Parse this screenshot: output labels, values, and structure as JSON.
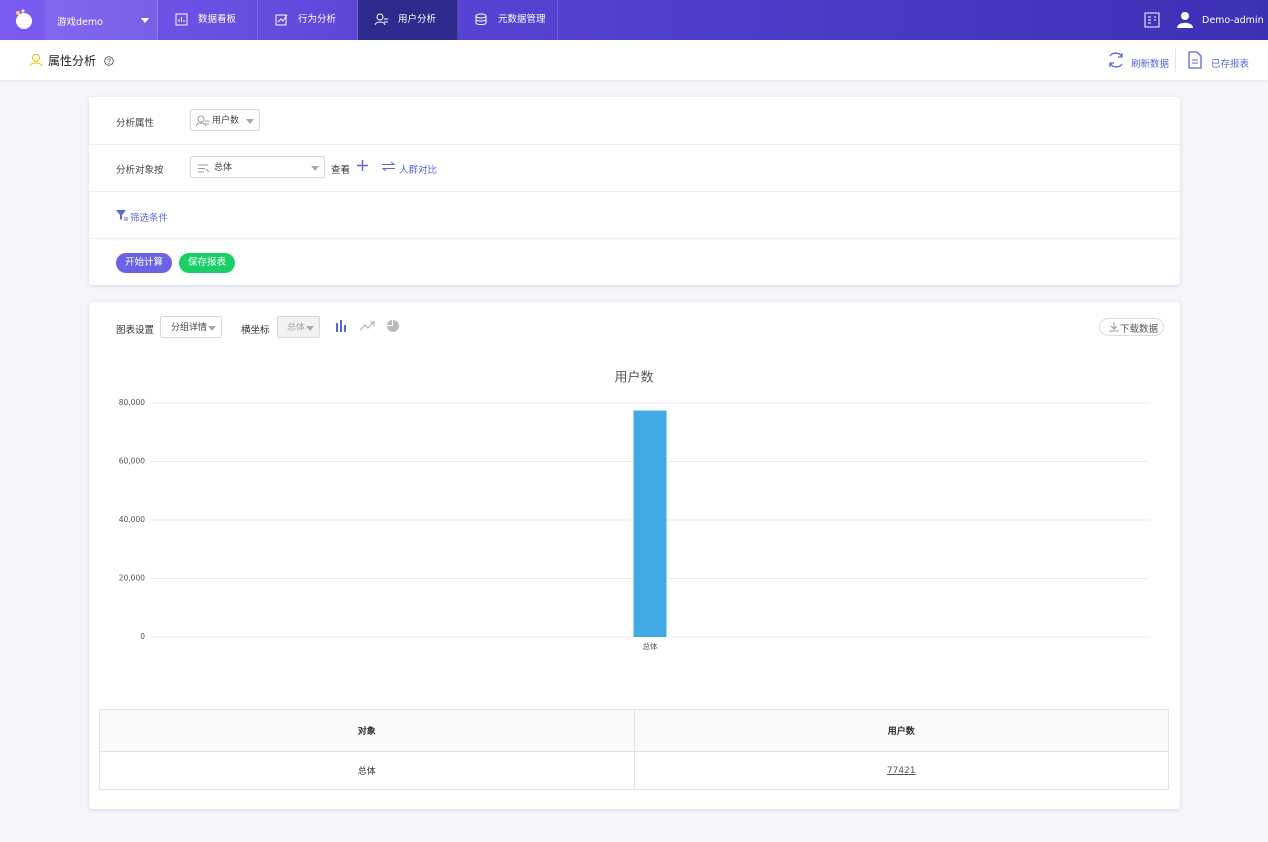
{
  "nav": {
    "project": "游戏demo",
    "tabs": [
      "数据看板",
      "行为分析",
      "用户分析",
      "元数据管理"
    ],
    "user": "Demo-admin"
  },
  "header": {
    "title": "属性分析",
    "actions": [
      "刷新数据",
      "已存报表"
    ]
  },
  "query": {
    "attribute_label": "分析属性",
    "attribute": "用户数",
    "group_label": "分析对象按",
    "group": "总体",
    "view": "查看",
    "compare": "人群对比",
    "filter": "筛选条件",
    "buttons": [
      "开始计算",
      "保存报表"
    ]
  },
  "chart_settings": {
    "label": "图表设置",
    "mode": "分组详情",
    "xaxis_label": "横坐标",
    "xaxis": "总体",
    "download": "下载数据"
  },
  "chart_data": {
    "type": "bar",
    "title": "用户数",
    "categories": [
      "总体"
    ],
    "values": [
      77421
    ],
    "color": "#41a9e4",
    "ylim": [
      0,
      80000
    ],
    "yticks": [
      0,
      {
        "value": 20000,
        "label": "20,000"
      },
      {
        "value": 40000,
        "label": "40,000"
      },
      {
        "value": 60000,
        "label": "60,000"
      },
      {
        "value": 80000,
        "label": "80,000"
      }
    ],
    "grid": true
  },
  "table": {
    "headers": [
      "对象",
      "用户数"
    ],
    "rows": [
      [
        "总体",
        77421
      ]
    ]
  }
}
